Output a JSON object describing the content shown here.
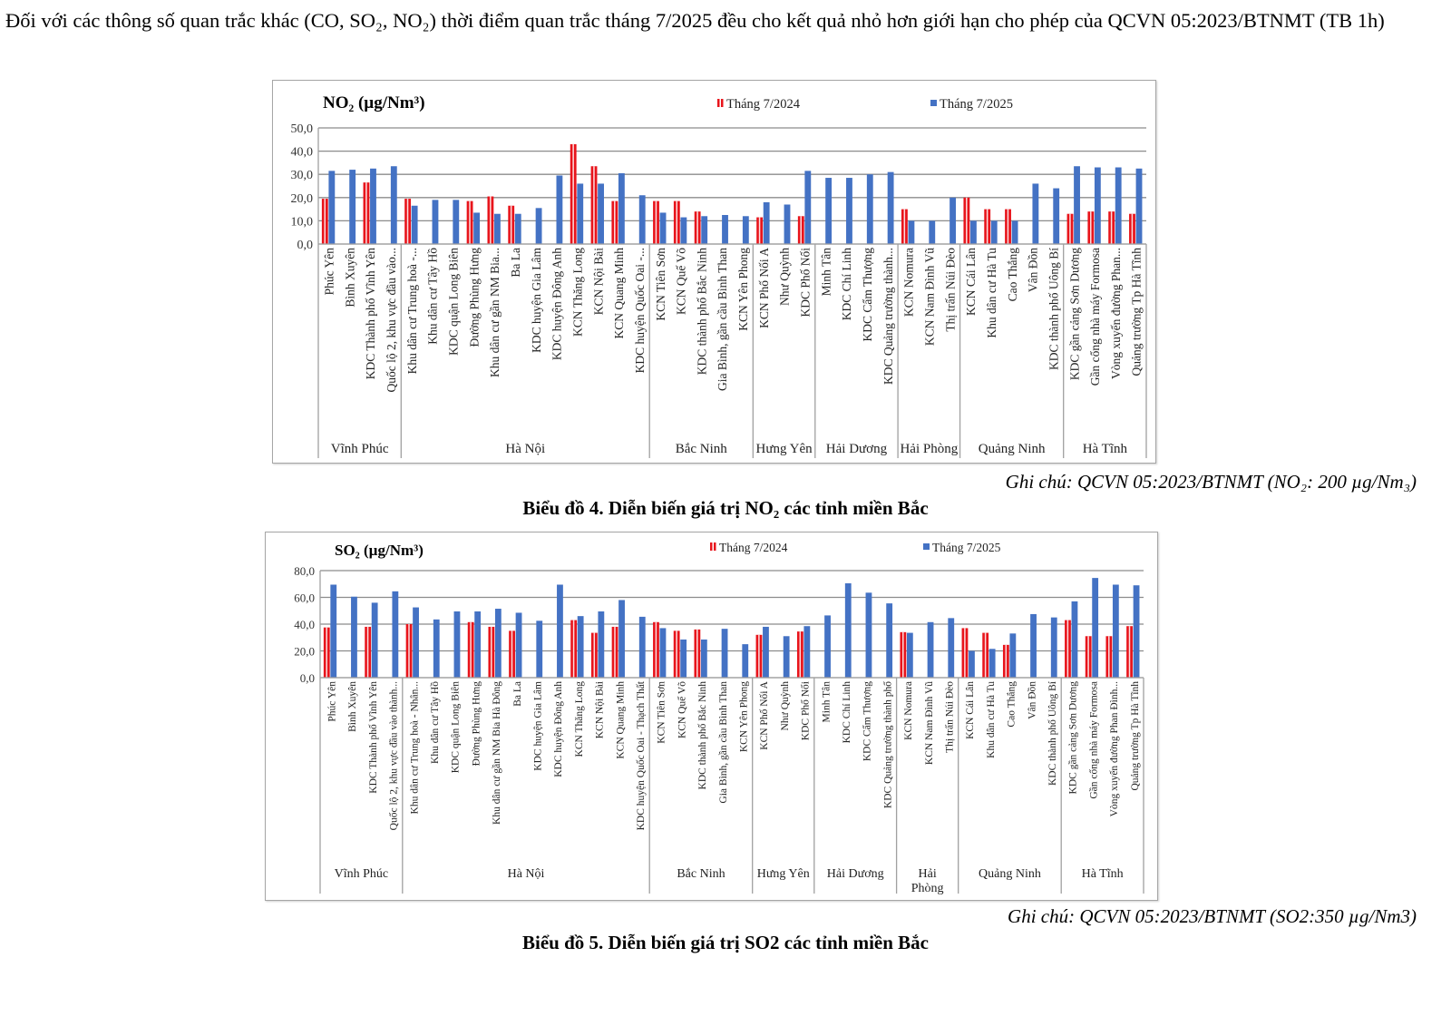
{
  "paragraph": {
    "text": "Đối với các thông số quan trắc khác (CO, SO₂, NO₂) thời điểm quan trắc tháng 7/2025 đều cho kết quả nhỏ hơn giới hạn cho phép của QCVN 05:2023/BTNMT (TB 1h)"
  },
  "figures": [
    {
      "note": "Ghi chú: QCVN 05:2023/BTNMT (NO₂: 200 µg/Nm₃)",
      "caption": "Biểu đồ 4. Diễn biến giá trị NO₂ các tỉnh miền Bắc"
    },
    {
      "note": "Ghi chú: QCVN 05:2023/BTNMT (SO2:350 µg/Nm3)",
      "caption": "Biểu đồ 5. Diễn biến giá trị SO2 các tỉnh miền Bắc"
    }
  ],
  "colors": {
    "series_2024": "#e8141b",
    "series_2025": "#4472c4",
    "grid": "#8c8c8c"
  },
  "chart_data": [
    {
      "type": "bar",
      "title": "NO₂ (µg/Nm³)",
      "xlabel": "",
      "ylabel": "",
      "ylim": [
        0,
        50
      ],
      "yticks": [
        "0,0",
        "10,0",
        "20,0",
        "30,0",
        "40,0",
        "50,0"
      ],
      "grid": true,
      "legend": "top-right",
      "categories": [
        "Phúc Yên",
        "Bình Xuyên",
        "KDC Thành phố Vĩnh Yên",
        "Quốc lộ 2, khu vực đầu vào...",
        "Khu dân cư Trung hoà -...",
        "Khu dân cư Tây Hồ",
        "KDC quận Long Biên",
        "Đường Phùng Hưng",
        "Khu dân cư gần NM Bia...",
        "Ba La",
        "KDC huyện Gia Lâm",
        "KDC huyện Đông Anh",
        "KCN Thăng Long",
        "KCN Nội Bài",
        "KCN Quang Minh",
        "KDC huyện Quốc Oai -...",
        "KCN Tiên Sơn",
        "KCN Quế Võ",
        "KDC thành phố Bắc Ninh",
        "Gia Bình, gần cầu Bình Than",
        "KCN Yên Phong",
        "KCN Phố Nối A",
        "Như Quỳnh",
        "KDC Phố Nối",
        "Minh Tân",
        "KDC Chí Linh",
        "KDC Cẩm Thượng",
        "KDC Quảng trường thành...",
        "KCN Nomura",
        "KCN Nam Đình Vũ",
        "Thị trấn Núi Đèo",
        "KCN Cái Lân",
        "Khu dân cư Hà Tu",
        "Cao Thắng",
        "Vân Đồn",
        "KDC thành phố Uông Bí",
        "KDC gần cảng Sơn Dương",
        "Gần cổng nhà máy Formosa",
        "Vòng xuyến đường Phan...",
        "Quảng trường Tp Hà Tĩnh"
      ],
      "groups": [
        {
          "name": "Vĩnh Phúc",
          "count": 4
        },
        {
          "name": "Hà Nội",
          "count": 12
        },
        {
          "name": "Bắc Ninh",
          "count": 5
        },
        {
          "name": "Hưng Yên",
          "count": 3
        },
        {
          "name": "Hải Dương",
          "count": 4
        },
        {
          "name": "Hải Phòng",
          "count": 3
        },
        {
          "name": "Quảng Ninh",
          "count": 5
        },
        {
          "name": "Hà Tĩnh",
          "count": 4
        }
      ],
      "series": [
        {
          "name": "Tháng 7/2024",
          "values": [
            19.5,
            0,
            26.5,
            0,
            19.5,
            0,
            0,
            18.5,
            20.5,
            16.5,
            0,
            0,
            43,
            33.5,
            18.5,
            0,
            18.5,
            18.5,
            14,
            0,
            0,
            11.5,
            0,
            12,
            0,
            0,
            0,
            0,
            15,
            0,
            0,
            20,
            15,
            15,
            0,
            0,
            13,
            14,
            14,
            13
          ]
        },
        {
          "name": "Tháng 7/2025",
          "values": [
            31.5,
            32,
            32.5,
            33.5,
            16.5,
            19,
            19,
            13.5,
            13,
            13,
            15.5,
            29.5,
            26,
            26,
            30.5,
            21,
            13.5,
            11.5,
            12,
            12.5,
            12,
            18,
            17,
            31.5,
            28.5,
            28.5,
            30,
            31,
            10,
            10,
            20,
            10,
            10,
            10,
            26,
            24,
            33.5,
            33,
            33,
            32.5
          ]
        }
      ]
    },
    {
      "type": "bar",
      "title": "SO₂ (µg/Nm³)",
      "xlabel": "",
      "ylabel": "",
      "ylim": [
        0,
        80
      ],
      "yticks": [
        "0,0",
        "20,0",
        "40,0",
        "60,0",
        "80,0"
      ],
      "grid": true,
      "legend": "top-right",
      "categories": [
        "Phúc Yên",
        "Bình Xuyên",
        "KDC Thành phố Vĩnh Yên",
        "Quốc lộ 2, khu vực đầu vào thành...",
        "Khu dân cư Trung hoà - Nhân...",
        "Khu dân cư Tây Hồ",
        "KDC quận Long Biên",
        "Đường Phùng Hưng",
        "Khu dân cư gần NM Bia Hà Đông",
        "Ba La",
        "KDC huyện Gia Lâm",
        "KDC huyện Đông Anh",
        "KCN Thăng Long",
        "KCN Nội Bài",
        "KCN Quang Minh",
        "KDC huyện Quốc Oai - Thạch Thất",
        "KCN Tiên Sơn",
        "KCN Quế Võ",
        "KDC thành phố Bắc Ninh",
        "Gia Bình, gần cầu Bình Than",
        "KCN Yên Phong",
        "KCN Phố Nối A",
        "Như Quỳnh",
        "KDC Phố Nối",
        "Minh Tân",
        "KDC Chí Linh",
        "KDC Cẩm Thượng",
        "KDC Quảng trường thành phố",
        "KCN Nomura",
        "KCN Nam Đình Vũ",
        "Thị trấn Núi Đèo",
        "KCN Cái Lân",
        "Khu dân cư Hà Tu",
        "Cao Thắng",
        "Vân Đồn",
        "KDC thành phố Uông Bí",
        "KDC gần cảng Sơn Dương",
        "Gần cổng nhà máy Formosa",
        "Vòng xuyến đường Phan Đình...",
        "Quảng trường Tp Hà Tĩnh"
      ],
      "groups": [
        {
          "name": "Vĩnh Phúc",
          "count": 4
        },
        {
          "name": "Hà Nội",
          "count": 12
        },
        {
          "name": "Bắc Ninh",
          "count": 5
        },
        {
          "name": "Hưng Yên",
          "count": 3
        },
        {
          "name": "Hải Dương",
          "count": 4
        },
        {
          "name": "Hải Phòng",
          "count": 3
        },
        {
          "name": "Quảng Ninh",
          "count": 5
        },
        {
          "name": "Hà Tĩnh",
          "count": 4
        }
      ],
      "series": [
        {
          "name": "Tháng 7/2024",
          "values": [
            37.5,
            0,
            38,
            0,
            40,
            0,
            0,
            41.5,
            38,
            35,
            0,
            0,
            43,
            33.5,
            38,
            0,
            41.5,
            35,
            36,
            0,
            0,
            32,
            0,
            34.5,
            0,
            0,
            0,
            0,
            34,
            0,
            0,
            37,
            33.5,
            24.5,
            0,
            0,
            43,
            31,
            31,
            38.5
          ]
        },
        {
          "name": "Tháng 7/2025",
          "values": [
            69.5,
            60.5,
            56,
            64.5,
            52.5,
            43.5,
            49.5,
            49.5,
            51.5,
            48.5,
            42.5,
            69.5,
            46,
            49.5,
            58,
            45.5,
            37,
            28.5,
            28.5,
            36.5,
            25,
            38,
            31,
            38.5,
            46.5,
            70.5,
            63.5,
            55.5,
            33.5,
            41.5,
            44.5,
            20,
            21.5,
            33,
            47.5,
            45,
            57,
            74.5,
            69.5,
            69
          ]
        }
      ]
    }
  ]
}
